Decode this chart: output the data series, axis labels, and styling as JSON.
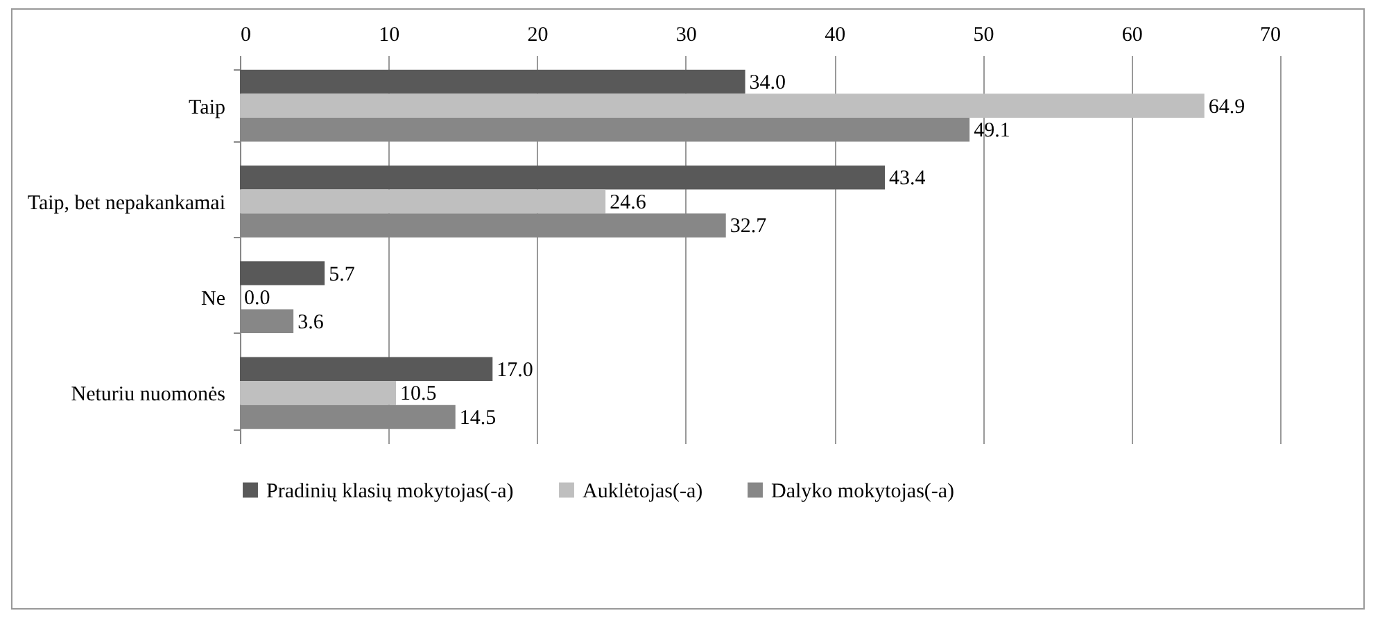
{
  "chart_data": {
    "type": "bar",
    "orientation": "horizontal",
    "categories": [
      "Taip",
      "Taip, bet nepakankamai",
      "Ne",
      "Neturiu nuomonės"
    ],
    "series": [
      {
        "name": "Pradinių klasių mokytojas(-a)",
        "color": "#595959",
        "values": [
          34.0,
          43.4,
          5.7,
          17.0
        ],
        "value_labels": [
          "34.0",
          "43.4",
          "5.7",
          "17.0"
        ]
      },
      {
        "name": "Auklėtojas(-a)",
        "color": "#bfbfbf",
        "values": [
          64.9,
          24.6,
          0.0,
          10.5
        ],
        "value_labels": [
          "64.9",
          "24.6",
          "0.0",
          "10.5"
        ]
      },
      {
        "name": "Dalyko mokytojas(-a)",
        "color": "#878787",
        "values": [
          49.1,
          32.7,
          3.6,
          14.5
        ],
        "value_labels": [
          "49.1",
          "32.7",
          "3.6",
          "14.5"
        ]
      }
    ],
    "xlim": [
      0,
      70
    ],
    "xticks": [
      0,
      10,
      20,
      30,
      40,
      50,
      60,
      70
    ],
    "grid": "x",
    "legend": "bottom"
  }
}
